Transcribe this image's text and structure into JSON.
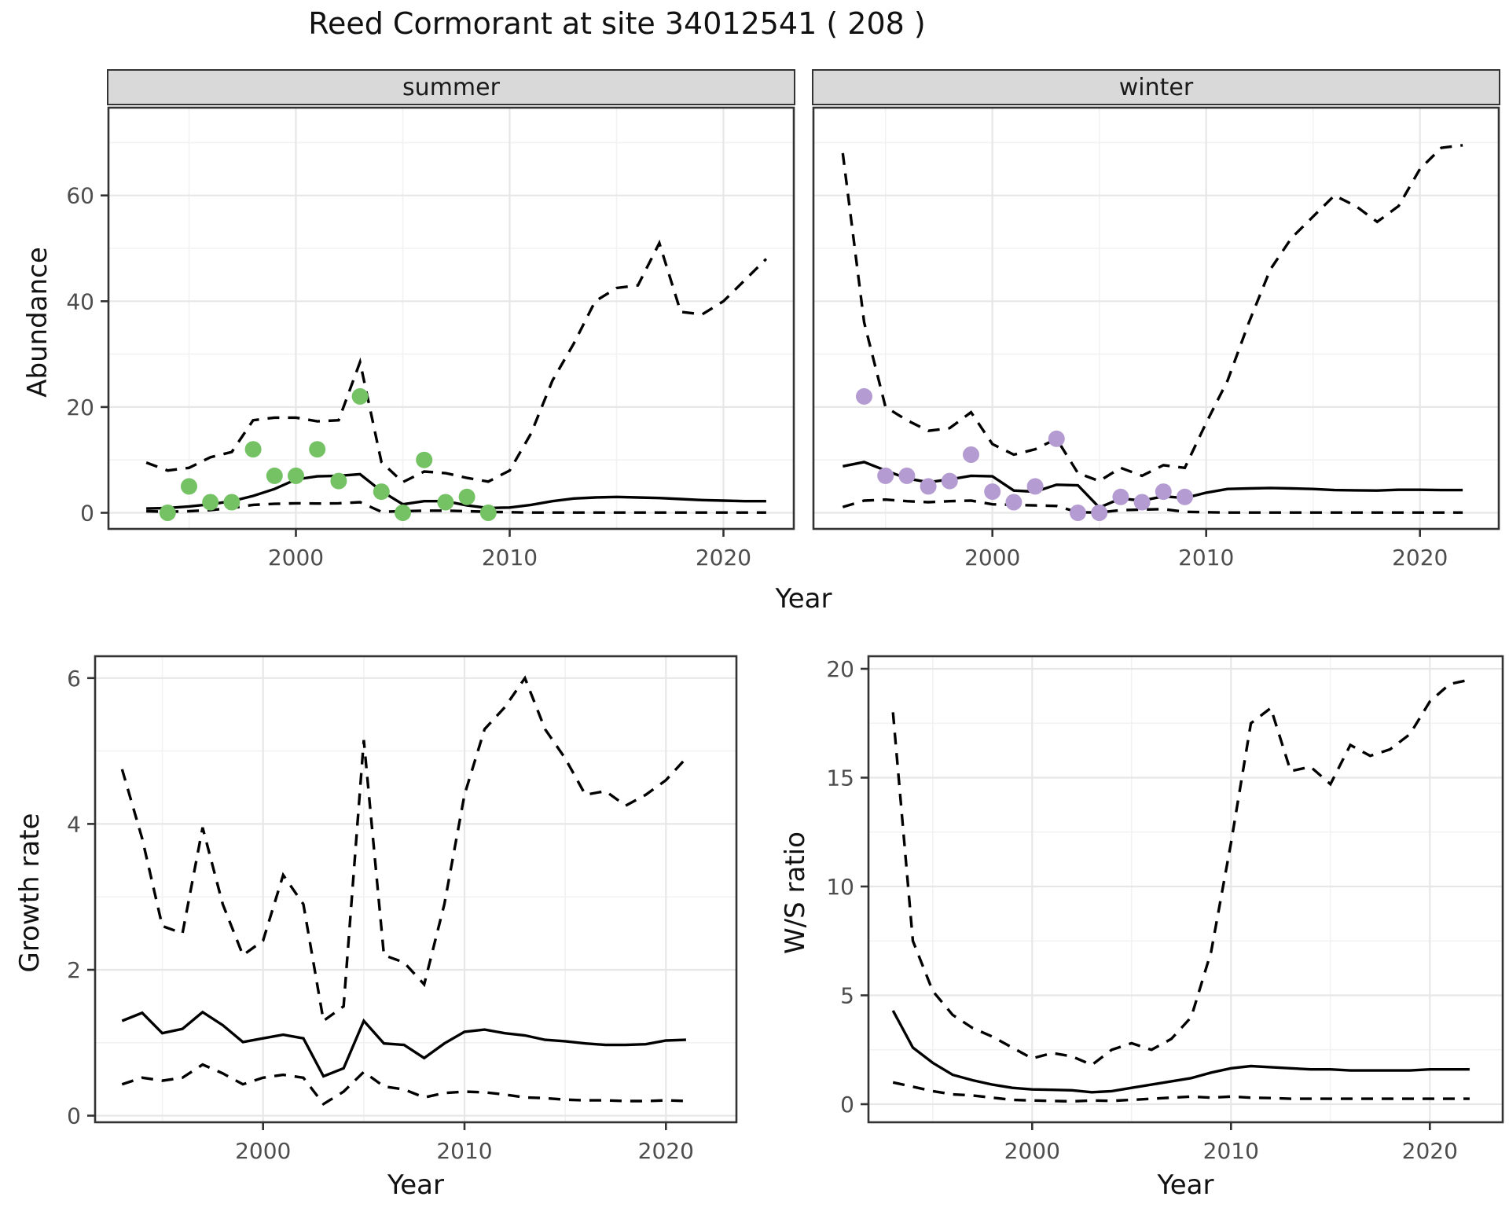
{
  "title": "Reed Cormorant at site 34012541 ( 208 )",
  "facets": {
    "summer": "summer",
    "winter": "winter"
  },
  "axes": {
    "abundance": "Abundance",
    "growth": "Growth rate",
    "ws": "W/S ratio",
    "year": "Year"
  },
  "colors": {
    "summer_points": "#74c264",
    "winter_points": "#b49bd1",
    "line": "#000000",
    "strip_bg": "#d9d9d9",
    "grid_major": "#e7e7e7",
    "grid_minor": "#f2f2f2",
    "tick_text": "#4d4d4d",
    "panel_border": "#333333"
  },
  "chart_data": [
    {
      "id": "abundance-summer",
      "type": "line",
      "facet": "summer",
      "ylabel": "Abundance",
      "xlabel": "Year",
      "x_ticks": [
        2000,
        2010,
        2020
      ],
      "y_ticks": [
        0,
        20,
        40,
        60
      ],
      "xlim": [
        1991.2,
        2023.7
      ],
      "ylim": [
        -3,
        77
      ],
      "x": [
        1993,
        1994,
        1995,
        1996,
        1997,
        1998,
        1999,
        2000,
        2001,
        2002,
        2003,
        2004,
        2005,
        2006,
        2007,
        2008,
        2009,
        2010,
        2011,
        2012,
        2013,
        2014,
        2015,
        2016,
        2017,
        2018,
        2019,
        2020,
        2021,
        2022
      ],
      "series": [
        {
          "name": "median",
          "style": "solid",
          "values": [
            0.8,
            0.9,
            1.2,
            1.6,
            2.2,
            3.2,
            4.5,
            6.3,
            6.9,
            7.0,
            7.3,
            4.1,
            1.6,
            2.2,
            2.2,
            1.4,
            0.9,
            1.0,
            1.5,
            2.2,
            2.7,
            2.9,
            3.0,
            2.9,
            2.8,
            2.6,
            2.4,
            2.3,
            2.2,
            2.2
          ]
        },
        {
          "name": "upper_ci",
          "style": "dashed",
          "values": [
            9.5,
            8.0,
            8.5,
            10.5,
            11.5,
            17.5,
            18.0,
            18.0,
            17.3,
            17.5,
            28.5,
            9.6,
            5.8,
            7.8,
            7.5,
            6.6,
            5.9,
            8.0,
            15.0,
            25.0,
            32.0,
            40.0,
            42.5,
            43.0,
            51.0,
            38.0,
            37.5,
            40.0,
            44.0,
            48.0
          ]
        },
        {
          "name": "lower_ci",
          "style": "dashed",
          "values": [
            0.3,
            0.2,
            0.3,
            0.5,
            0.9,
            1.5,
            1.7,
            1.8,
            1.75,
            1.8,
            2.0,
            0.2,
            0.3,
            0.4,
            0.4,
            0.3,
            0.2,
            0.1,
            0.05,
            0.05,
            0.05,
            0.05,
            0.05,
            0.05,
            0.05,
            0.05,
            0.05,
            0.05,
            0.05,
            0.05
          ]
        }
      ],
      "points": {
        "name": "observed_counts",
        "years": [
          1994,
          1995,
          1996,
          1997,
          1998,
          1999,
          2000,
          2001,
          2002,
          2003,
          2004,
          2005,
          2006,
          2007,
          2008,
          2009
        ],
        "values": [
          0,
          5,
          2,
          2,
          12,
          7,
          7,
          12,
          6,
          22,
          4,
          0,
          10,
          2,
          3,
          0
        ],
        "color_ref": "summer_points"
      }
    },
    {
      "id": "abundance-winter",
      "type": "line",
      "facet": "winter",
      "ylabel": "Abundance",
      "xlabel": "Year",
      "x_ticks": [
        2000,
        2010,
        2020
      ],
      "y_ticks": [],
      "xlim": [
        1991.2,
        2023.7
      ],
      "ylim": [
        -3,
        77
      ],
      "x": [
        1993,
        1994,
        1995,
        1996,
        1997,
        1998,
        1999,
        2000,
        2001,
        2002,
        2003,
        2004,
        2005,
        2006,
        2007,
        2008,
        2009,
        2010,
        2011,
        2012,
        2013,
        2014,
        2015,
        2016,
        2017,
        2018,
        2019,
        2020,
        2021,
        2022
      ],
      "series": [
        {
          "name": "median",
          "style": "solid",
          "values": [
            8.8,
            9.6,
            8.0,
            6.5,
            5.8,
            6.3,
            7.0,
            6.9,
            4.2,
            4.0,
            5.3,
            5.2,
            1.0,
            2.7,
            2.3,
            3.1,
            2.8,
            3.8,
            4.5,
            4.6,
            4.7,
            4.6,
            4.5,
            4.3,
            4.25,
            4.2,
            4.35,
            4.35,
            4.3,
            4.3
          ]
        },
        {
          "name": "upper_ci",
          "style": "dashed",
          "values": [
            68,
            36,
            20,
            17.5,
            15.5,
            16,
            19,
            13,
            11,
            12,
            14,
            7.5,
            6,
            8.5,
            7,
            9,
            8.5,
            17,
            25,
            36,
            46,
            52,
            56,
            60,
            58,
            55,
            58,
            65,
            69,
            69.5
          ]
        },
        {
          "name": "lower_ci",
          "style": "dashed",
          "values": [
            1.1,
            2.3,
            2.5,
            2.2,
            2.0,
            2.2,
            2.3,
            1.6,
            1.5,
            1.4,
            1.3,
            0.1,
            0.05,
            0.5,
            0.6,
            0.7,
            0.2,
            0.1,
            0.05,
            0.05,
            0.05,
            0.05,
            0.05,
            0.05,
            0.05,
            0.05,
            0.05,
            0.05,
            0.05,
            0.05
          ]
        }
      ],
      "points": {
        "name": "observed_counts",
        "years": [
          1994,
          1995,
          1996,
          1997,
          1998,
          1999,
          2000,
          2001,
          2002,
          2003,
          2004,
          2005,
          2006,
          2007,
          2008,
          2009
        ],
        "values": [
          22,
          7,
          7,
          5,
          6,
          11,
          4,
          2,
          5,
          14,
          0,
          0,
          3,
          2,
          4,
          3
        ],
        "color_ref": "winter_points"
      }
    },
    {
      "id": "growth-rate",
      "type": "line",
      "facet": null,
      "ylabel": "Growth rate",
      "xlabel": "Year",
      "x_ticks": [
        2000,
        2010,
        2020
      ],
      "y_ticks": [
        0,
        2,
        4,
        6
      ],
      "xlim": [
        1991.5,
        2023.5
      ],
      "ylim": [
        -0.1,
        6.3
      ],
      "x": [
        1993,
        1994,
        1995,
        1996,
        1997,
        1998,
        1999,
        2000,
        2001,
        2002,
        2003,
        2004,
        2005,
        2006,
        2007,
        2008,
        2009,
        2010,
        2011,
        2012,
        2013,
        2014,
        2015,
        2016,
        2017,
        2018,
        2019,
        2020,
        2021
      ],
      "series": [
        {
          "name": "median",
          "style": "solid",
          "values": [
            1.3,
            1.41,
            1.13,
            1.19,
            1.42,
            1.24,
            1.01,
            1.06,
            1.11,
            1.06,
            0.54,
            0.65,
            1.3,
            0.99,
            0.97,
            0.79,
            0.99,
            1.15,
            1.18,
            1.13,
            1.1,
            1.04,
            1.02,
            0.99,
            0.97,
            0.97,
            0.98,
            1.03,
            1.04
          ]
        },
        {
          "name": "upper_ci",
          "style": "dashed",
          "values": [
            4.75,
            3.8,
            2.6,
            2.5,
            3.95,
            2.9,
            2.2,
            2.4,
            3.3,
            2.9,
            1.3,
            1.5,
            5.15,
            2.2,
            2.1,
            1.8,
            2.9,
            4.4,
            5.3,
            5.6,
            6.0,
            5.3,
            4.9,
            4.4,
            4.45,
            4.25,
            4.4,
            4.6,
            4.9
          ]
        },
        {
          "name": "lower_ci",
          "style": "dashed",
          "values": [
            0.43,
            0.52,
            0.48,
            0.52,
            0.7,
            0.58,
            0.43,
            0.52,
            0.56,
            0.52,
            0.16,
            0.33,
            0.6,
            0.4,
            0.36,
            0.25,
            0.31,
            0.33,
            0.32,
            0.29,
            0.25,
            0.24,
            0.22,
            0.21,
            0.21,
            0.2,
            0.2,
            0.21,
            0.2
          ]
        }
      ],
      "points": null
    },
    {
      "id": "ws-ratio",
      "type": "line",
      "facet": null,
      "ylabel": "W/S ratio",
      "xlabel": "Year",
      "x_ticks": [
        2000,
        2010,
        2020
      ],
      "y_ticks": [
        0,
        5,
        10,
        15,
        20
      ],
      "xlim": [
        1991.9,
        2023.7
      ],
      "ylim": [
        -0.8,
        20.6
      ],
      "x": [
        1993,
        1994,
        1995,
        1996,
        1997,
        1998,
        1999,
        2000,
        2001,
        2002,
        2003,
        2004,
        2005,
        2006,
        2007,
        2008,
        2009,
        2010,
        2011,
        2012,
        2013,
        2014,
        2015,
        2016,
        2017,
        2018,
        2019,
        2020,
        2021,
        2022
      ],
      "series": [
        {
          "name": "median",
          "style": "solid",
          "values": [
            4.3,
            2.6,
            1.9,
            1.35,
            1.1,
            0.9,
            0.75,
            0.68,
            0.66,
            0.64,
            0.55,
            0.6,
            0.75,
            0.9,
            1.05,
            1.2,
            1.45,
            1.65,
            1.75,
            1.7,
            1.65,
            1.6,
            1.6,
            1.55,
            1.55,
            1.55,
            1.55,
            1.6,
            1.6,
            1.6
          ]
        },
        {
          "name": "upper_ci",
          "style": "dashed",
          "values": [
            18,
            7.5,
            5.2,
            4.1,
            3.5,
            3.1,
            2.6,
            2.1,
            2.35,
            2.2,
            1.8,
            2.5,
            2.8,
            2.5,
            3.0,
            4.0,
            7.0,
            12.0,
            17.5,
            18.2,
            15.3,
            15.5,
            14.7,
            16.5,
            16.0,
            16.3,
            17.0,
            18.5,
            19.3,
            19.5
          ]
        },
        {
          "name": "lower_ci",
          "style": "dashed",
          "values": [
            1.0,
            0.8,
            0.6,
            0.45,
            0.4,
            0.3,
            0.2,
            0.17,
            0.15,
            0.13,
            0.17,
            0.15,
            0.2,
            0.25,
            0.3,
            0.35,
            0.3,
            0.35,
            0.3,
            0.28,
            0.25,
            0.25,
            0.25,
            0.25,
            0.25,
            0.25,
            0.25,
            0.25,
            0.25,
            0.25
          ]
        }
      ],
      "points": null
    }
  ]
}
